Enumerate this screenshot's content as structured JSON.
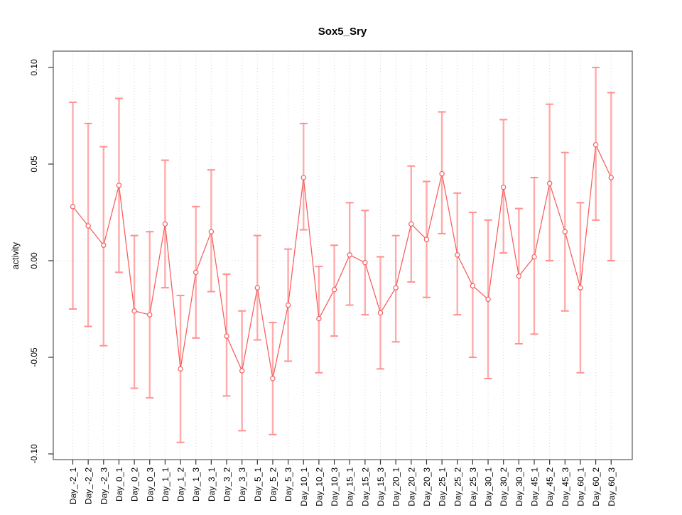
{
  "chart_data": {
    "type": "line",
    "subtype": "points-with-error-bars",
    "title": "Sox5_Sry",
    "xlabel": "",
    "ylabel": "activity",
    "ylim": [
      -0.1,
      0.1
    ],
    "yticks": [
      0.1,
      0.05,
      0.0,
      -0.05,
      -0.1
    ],
    "ytick_labels": [
      "0.10",
      "0.05",
      "0.00",
      "-0.05",
      "-0.10"
    ],
    "grid": "dotted vertical gridline per category; dotted horizontal line at y=0",
    "legend_position": "none",
    "categories": [
      "Day_-2_1",
      "Day_-2_2",
      "Day_-2_3",
      "Day_0_1",
      "Day_0_2",
      "Day_0_3",
      "Day_1_1",
      "Day_1_2",
      "Day_1_3",
      "Day_3_1",
      "Day_3_2",
      "Day_3_3",
      "Day_5_1",
      "Day_5_2",
      "Day_5_3",
      "Day_10_1",
      "Day_10_2",
      "Day_10_3",
      "Day_15_1",
      "Day_15_2",
      "Day_15_3",
      "Day_20_1",
      "Day_20_2",
      "Day_20_3",
      "Day_25_1",
      "Day_25_2",
      "Day_25_3",
      "Day_30_1",
      "Day_30_2",
      "Day_30_3",
      "Day_45_1",
      "Day_45_2",
      "Day_45_3",
      "Day_60_1",
      "Day_60_2",
      "Day_60_3"
    ],
    "series": [
      {
        "name": "activity",
        "values": [
          0.028,
          0.018,
          0.008,
          0.039,
          -0.026,
          -0.028,
          0.019,
          -0.056,
          -0.006,
          0.015,
          -0.039,
          -0.057,
          -0.014,
          -0.061,
          -0.023,
          0.043,
          -0.03,
          -0.015,
          0.003,
          -0.001,
          -0.027,
          -0.014,
          0.019,
          0.011,
          0.045,
          0.003,
          -0.013,
          -0.02,
          0.038,
          -0.008,
          0.002,
          0.04,
          0.015,
          -0.014,
          0.06,
          0.043
        ],
        "lower": [
          -0.025,
          -0.034,
          -0.044,
          -0.006,
          -0.066,
          -0.071,
          -0.014,
          -0.094,
          -0.04,
          -0.016,
          -0.07,
          -0.088,
          -0.041,
          -0.09,
          -0.052,
          0.016,
          -0.058,
          -0.039,
          -0.023,
          -0.028,
          -0.056,
          -0.042,
          -0.011,
          -0.019,
          0.014,
          -0.028,
          -0.05,
          -0.061,
          0.004,
          -0.043,
          -0.038,
          0.0,
          -0.026,
          -0.058,
          0.021,
          0.0
        ],
        "upper": [
          0.082,
          0.071,
          0.059,
          0.084,
          0.013,
          0.015,
          0.052,
          -0.018,
          0.028,
          0.047,
          -0.007,
          -0.026,
          0.013,
          -0.032,
          0.006,
          0.071,
          -0.003,
          0.008,
          0.03,
          0.026,
          0.002,
          0.013,
          0.049,
          0.041,
          0.077,
          0.035,
          0.025,
          0.021,
          0.073,
          0.027,
          0.043,
          0.081,
          0.056,
          0.03,
          0.1,
          0.087
        ]
      }
    ],
    "colors": {
      "line": "#f85c5c",
      "point_stroke": "#f85c5c",
      "point_fill": "#ffffff",
      "error_bar": "#ffabab",
      "error_cap": "#ff9090",
      "gridline": "#d8d8d8",
      "box": "#6e6e6e",
      "tick": "#333333",
      "text": "#000000"
    }
  }
}
